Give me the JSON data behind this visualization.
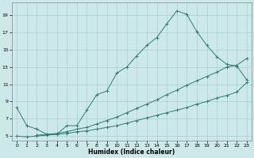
{
  "xlabel": "Humidex (Indice chaleur)",
  "bg_color": "#cce8e8",
  "line_color": "#2e7d6e",
  "grid_color": "#aacfcf",
  "xlim": [
    -0.5,
    23.5
  ],
  "ylim": [
    4.5,
    20.5
  ],
  "xticks": [
    0,
    1,
    2,
    3,
    4,
    5,
    6,
    7,
    8,
    9,
    10,
    11,
    12,
    13,
    14,
    15,
    16,
    17,
    18,
    19,
    20,
    21,
    22,
    23
  ],
  "yticks": [
    5,
    7,
    9,
    11,
    13,
    15,
    17,
    19
  ],
  "line1_x": [
    0,
    1,
    2,
    3,
    4,
    5,
    6,
    7,
    8,
    9,
    10,
    11,
    12,
    13,
    14,
    15,
    16,
    17,
    18,
    19,
    20,
    21,
    22,
    23
  ],
  "line1_y": [
    5.0,
    4.9,
    5.0,
    5.1,
    5.2,
    5.3,
    5.5,
    5.6,
    5.8,
    6.0,
    6.2,
    6.5,
    6.8,
    7.1,
    7.4,
    7.7,
    8.0,
    8.3,
    8.7,
    9.0,
    9.4,
    9.7,
    10.1,
    11.2
  ],
  "line2_x": [
    2,
    3,
    4,
    5,
    6,
    7,
    8,
    9,
    10,
    11,
    12,
    13,
    14,
    15,
    16,
    17,
    18,
    19,
    20,
    21,
    22,
    23
  ],
  "line2_y": [
    5.1,
    5.2,
    5.3,
    5.5,
    5.8,
    6.0,
    6.4,
    6.8,
    7.2,
    7.7,
    8.2,
    8.7,
    9.2,
    9.8,
    10.3,
    10.9,
    11.4,
    11.9,
    12.4,
    13.0,
    13.2,
    14.0
  ],
  "line3_x": [
    0,
    1,
    2,
    3,
    4,
    5,
    6,
    7,
    8,
    9,
    10,
    11,
    12,
    13,
    14,
    15,
    16,
    17,
    18,
    19,
    20,
    21,
    22,
    23
  ],
  "line3_y": [
    8.3,
    6.2,
    5.8,
    5.2,
    5.2,
    6.2,
    6.2,
    8.0,
    9.8,
    10.2,
    12.3,
    13.0,
    14.3,
    15.5,
    16.4,
    18.0,
    19.5,
    19.1,
    17.1,
    15.5,
    14.2,
    13.3,
    13.1,
    11.5
  ]
}
